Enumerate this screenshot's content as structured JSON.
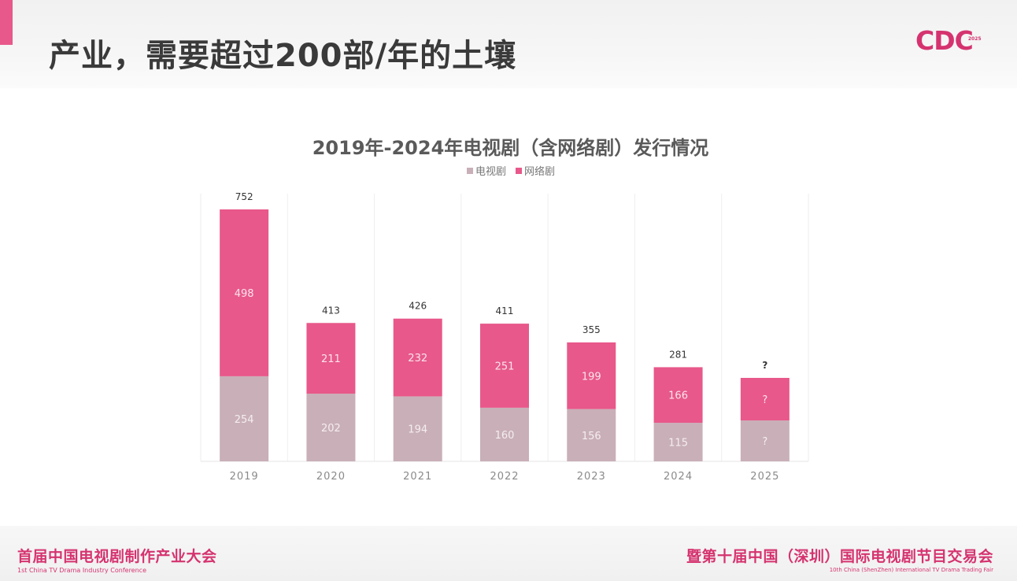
{
  "header": {
    "title": "产业，需要超过200部/年的土壤",
    "logo_text": "CDC",
    "logo_year": "2025"
  },
  "footer": {
    "left_cn": "首届中国电视剧制作产业大会",
    "left_en": "1st China TV Drama Industry Conference",
    "right_cn": "暨第十届中国（深圳）国际电视剧节目交易会",
    "right_en": "10th China (ShenZhen) International TV Drama Trading Fair"
  },
  "colors": {
    "accent": "#e8588a",
    "brand": "#d5336f",
    "tv_series": "#c9afb8",
    "web_series": "#e8588a"
  },
  "chart_data": {
    "type": "bar",
    "stacked": true,
    "title": "2019年-2024年电视剧（含网络剧）发行情况",
    "xlabel": "",
    "ylabel": "",
    "legend_position": "top-center",
    "grid": false,
    "categories": [
      "2019",
      "2020",
      "2021",
      "2022",
      "2023",
      "2024",
      "2025"
    ],
    "series": [
      {
        "name": "电视剧",
        "color": "#c9afb8",
        "values": [
          254,
          202,
          194,
          160,
          156,
          115,
          null
        ],
        "labels": [
          "254",
          "202",
          "194",
          "160",
          "156",
          "115",
          "?"
        ]
      },
      {
        "name": "网络剧",
        "color": "#e8588a",
        "values": [
          498,
          211,
          232,
          251,
          199,
          166,
          null
        ],
        "labels": [
          "498",
          "211",
          "232",
          "251",
          "199",
          "166",
          "?"
        ]
      }
    ],
    "totals": [
      752,
      413,
      426,
      411,
      355,
      281,
      null
    ],
    "total_labels": [
      "752",
      "413",
      "426",
      "411",
      "355",
      "281",
      "?"
    ],
    "ylim": [
      0,
      752
    ]
  }
}
